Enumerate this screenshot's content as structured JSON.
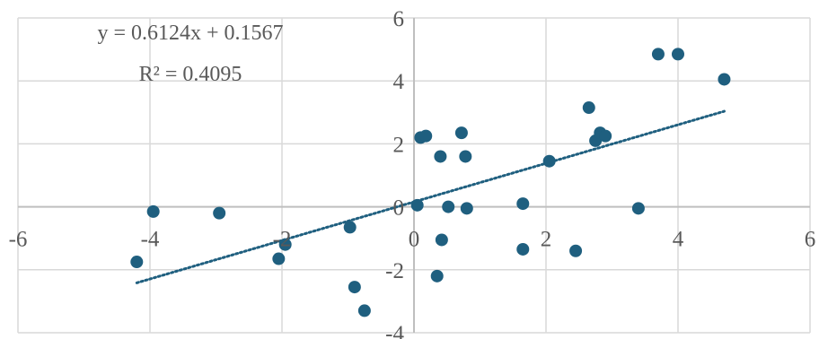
{
  "chart_data": {
    "type": "scatter",
    "xlim": [
      -6,
      6
    ],
    "ylim": [
      -4,
      6
    ],
    "xticks": [
      -6,
      -4,
      -2,
      0,
      2,
      4,
      6
    ],
    "yticks": [
      -4,
      -2,
      0,
      2,
      4,
      6
    ],
    "xtick_labels": [
      "-6",
      "-4",
      "-2",
      "0",
      "2",
      "4",
      "6"
    ],
    "ytick_labels": [
      "-4",
      "-2",
      "0",
      "2",
      "4",
      "6"
    ],
    "grid": true,
    "legend": "none",
    "colors": {
      "marker": "#1f5f7f",
      "trendline": "#1f5f7f",
      "grid": "#d9d9d9",
      "axis": "#bfbfbf",
      "text": "#595959"
    },
    "points": [
      {
        "x": -4.2,
        "y": -1.75
      },
      {
        "x": -3.95,
        "y": -0.15
      },
      {
        "x": -2.95,
        "y": -0.2
      },
      {
        "x": -2.05,
        "y": -1.65
      },
      {
        "x": -1.95,
        "y": -1.2
      },
      {
        "x": -0.97,
        "y": -0.65
      },
      {
        "x": -0.9,
        "y": -2.55
      },
      {
        "x": -0.75,
        "y": -3.3
      },
      {
        "x": 0.05,
        "y": 0.05
      },
      {
        "x": 0.1,
        "y": 2.2
      },
      {
        "x": 0.18,
        "y": 2.25
      },
      {
        "x": 0.35,
        "y": -2.2
      },
      {
        "x": 0.4,
        "y": 1.6
      },
      {
        "x": 0.42,
        "y": -1.05
      },
      {
        "x": 0.52,
        "y": 0.0
      },
      {
        "x": 0.72,
        "y": 2.35
      },
      {
        "x": 0.78,
        "y": 1.6
      },
      {
        "x": 0.8,
        "y": -0.05
      },
      {
        "x": 1.65,
        "y": 0.1
      },
      {
        "x": 1.65,
        "y": -1.35
      },
      {
        "x": 2.05,
        "y": 1.45
      },
      {
        "x": 2.45,
        "y": -1.4
      },
      {
        "x": 2.65,
        "y": 3.15
      },
      {
        "x": 2.75,
        "y": 2.1
      },
      {
        "x": 2.82,
        "y": 2.35
      },
      {
        "x": 2.9,
        "y": 2.25
      },
      {
        "x": 3.4,
        "y": -0.05
      },
      {
        "x": 3.7,
        "y": 4.85
      },
      {
        "x": 4.0,
        "y": 4.85
      },
      {
        "x": 4.7,
        "y": 4.05
      }
    ],
    "trendline": {
      "type": "linear",
      "slope": 0.6124,
      "intercept": 0.1567,
      "x_range": [
        -4.2,
        4.7
      ],
      "style": "dotted"
    },
    "annotations": {
      "equation": "y = 0.6124x + 0.1567",
      "r_squared": "R² = 0.4095"
    }
  }
}
